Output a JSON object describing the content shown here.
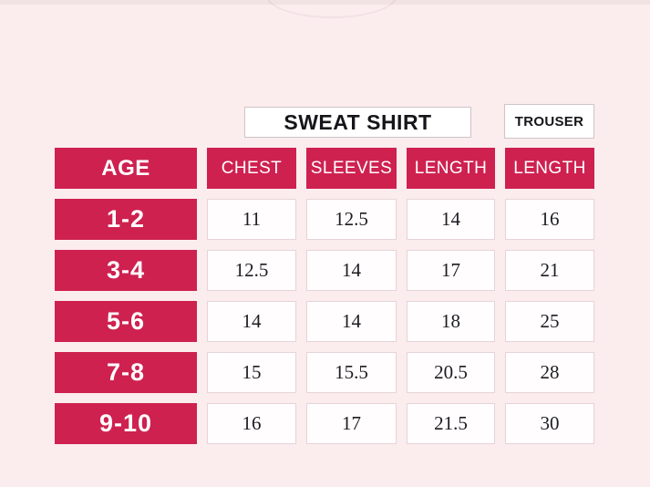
{
  "titles": {
    "sweatshirt": "SWEAT SHIRT",
    "trouser": "TROUSER"
  },
  "table": {
    "age_header": "AGE",
    "column_headers": [
      "CHEST",
      "SLEEVES",
      "LENGTH",
      "LENGTH"
    ],
    "rows": [
      {
        "age": "1-2",
        "values": [
          "11",
          "12.5",
          "14",
          "16"
        ]
      },
      {
        "age": "3-4",
        "values": [
          "12.5",
          "14",
          "17",
          "21"
        ]
      },
      {
        "age": "5-6",
        "values": [
          "14",
          "14",
          "18",
          "25"
        ]
      },
      {
        "age": "7-8",
        "values": [
          "15",
          "15.5",
          "20.5",
          "28"
        ]
      },
      {
        "age": "9-10",
        "values": [
          "16",
          "17",
          "21.5",
          "30"
        ]
      }
    ]
  },
  "colors": {
    "accent_red": "#ce2150",
    "background_pink": "#fbecee",
    "cell_border": "#e6d4d8",
    "title_border": "#cfc4c6",
    "cell_background": "#fffdfd"
  },
  "chart_data": {
    "type": "table",
    "title": "SWEAT SHIRT and TROUSER size chart by age",
    "column_groups": [
      {
        "label": "SWEAT SHIRT",
        "columns": [
          "CHEST",
          "SLEEVES",
          "LENGTH"
        ]
      },
      {
        "label": "TROUSER",
        "columns": [
          "LENGTH"
        ]
      }
    ],
    "columns": [
      "AGE",
      "CHEST",
      "SLEEVES",
      "LENGTH",
      "LENGTH"
    ],
    "rows": [
      [
        "1-2",
        11,
        12.5,
        14,
        16
      ],
      [
        "3-4",
        12.5,
        14,
        17,
        21
      ],
      [
        "5-6",
        14,
        14,
        18,
        25
      ],
      [
        "7-8",
        15,
        15.5,
        20.5,
        28
      ],
      [
        "9-10",
        16,
        17,
        21.5,
        30
      ]
    ]
  }
}
